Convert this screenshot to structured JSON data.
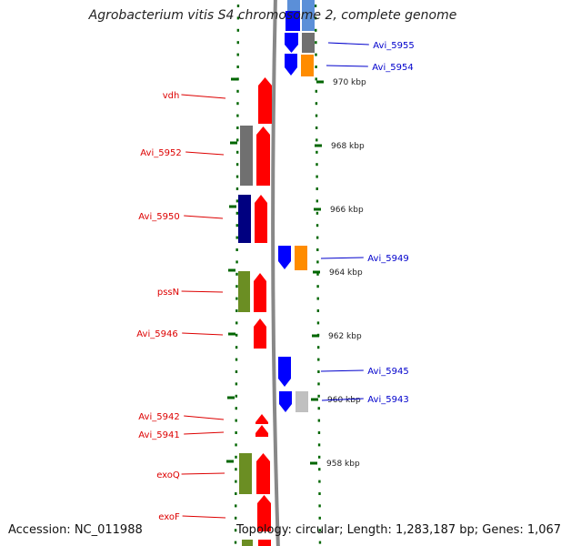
{
  "title": "Agrobacterium vitis S4 chromosome 2, complete genome",
  "accession_text": "Accession: NC_011988",
  "topology_text": "Topology: circular; Length: 1,283,187 bp; Genes: 1,067",
  "colors": {
    "left_label": "#dd0000",
    "right_label": "#0000cc",
    "tick": "#006600",
    "backbone": "#888888",
    "red": "#ff0000",
    "blue": "#0000ff",
    "orange": "#ff8c00",
    "gray": "#707070",
    "lightgray": "#c0c0c0",
    "navy": "#000080",
    "olive": "#6b8e23",
    "steel": "#5b8fd8"
  },
  "kbp_labels": [
    "970 kbp",
    "968 kbp",
    "966 kbp",
    "964 kbp",
    "962 kbp",
    "960 kbp",
    "958 kbp"
  ],
  "left_gene_labels": [
    "vdh",
    "Avi_5952",
    "Avi_5950",
    "pssN",
    "Avi_5946",
    "Avi_5942",
    "Avi_5941",
    "exoQ",
    "exoF"
  ],
  "right_gene_labels": [
    "Avi_5955",
    "Avi_5954",
    "Avi_5949",
    "Avi_5945",
    "Avi_5943"
  ]
}
